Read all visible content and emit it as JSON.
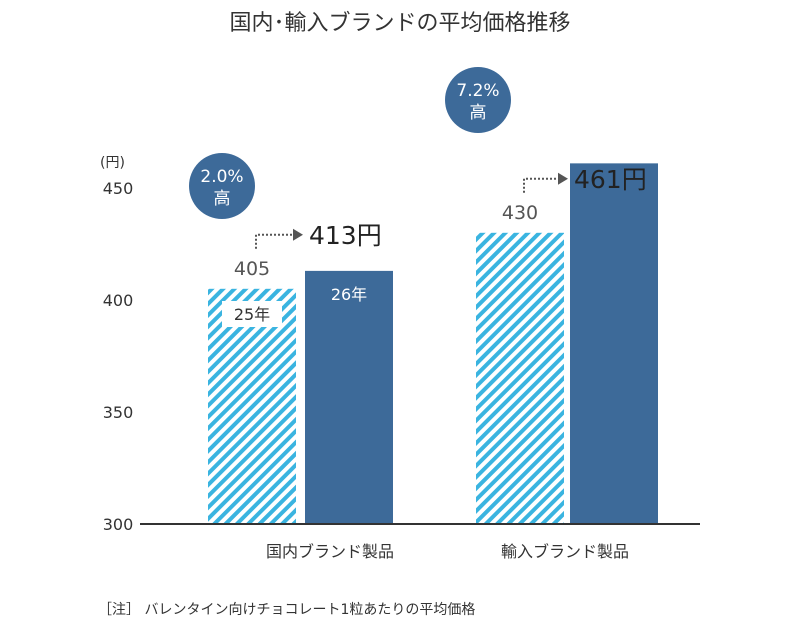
{
  "chart_data": {
    "type": "bar",
    "title": "国内･輸入ブランドの平均価格推移",
    "ylabel": "(円)",
    "ylim": [
      300,
      450
    ],
    "yticks": [
      300,
      350,
      400,
      450
    ],
    "categories": [
      "国内ブランド製品",
      "輸入ブランド製品"
    ],
    "series": [
      {
        "name": "25年",
        "values": [
          405,
          430
        ],
        "style": "hatched"
      },
      {
        "name": "26年",
        "values": [
          413,
          461
        ],
        "style": "solid"
      }
    ],
    "value_labels": [
      [
        "405",
        "413円"
      ],
      [
        "430",
        "461円"
      ]
    ],
    "badges": [
      {
        "pct": "2.0%",
        "word": "高"
      },
      {
        "pct": "7.2%",
        "word": "高"
      }
    ],
    "note": "［注］ バレンタイン向けチョコレート1粒あたりの平均価格",
    "colors": {
      "solid": "#3d6a99",
      "hatch": "#3ab4e0",
      "badge": "#3d6a99",
      "text": "#333333"
    }
  }
}
